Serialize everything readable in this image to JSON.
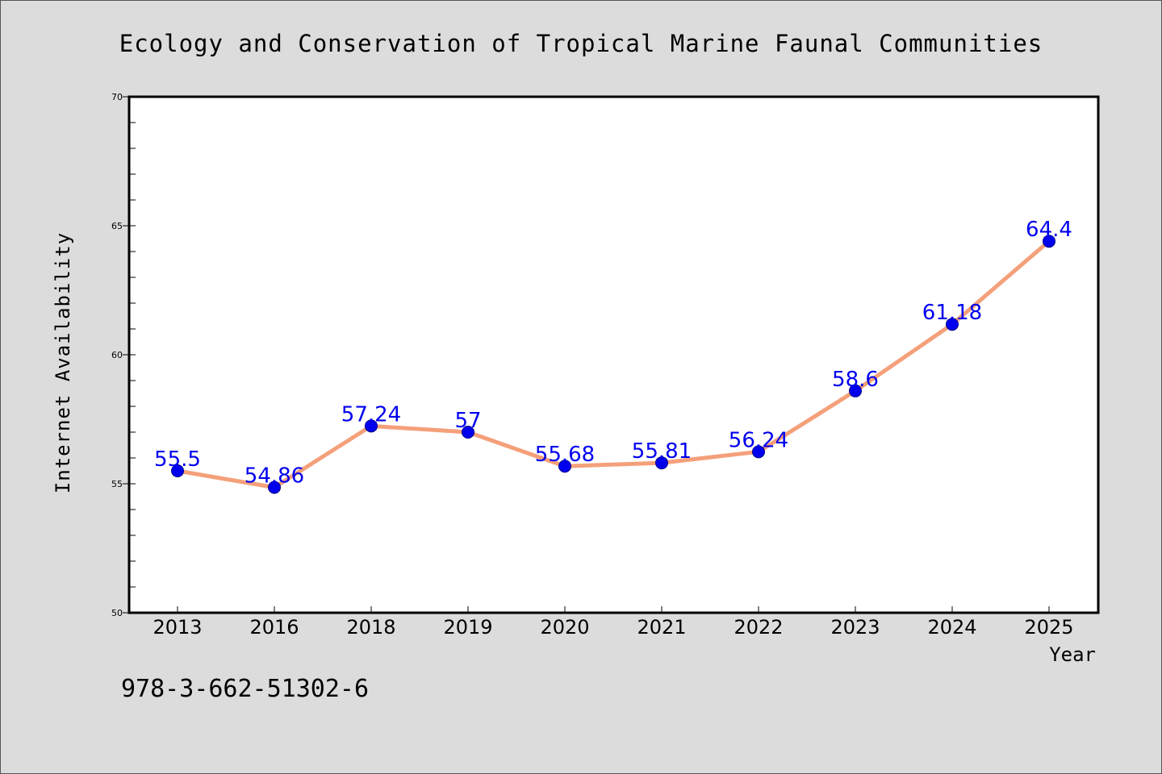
{
  "caption": "978-3-662-51302-6",
  "chart_data": {
    "type": "line",
    "title": "Ecology and Conservation of Tropical Marine Faunal Communities",
    "xlabel": "Year",
    "ylabel": "Internet Availability",
    "categories": [
      "2013",
      "2016",
      "2018",
      "2019",
      "2020",
      "2021",
      "2022",
      "2023",
      "2024",
      "2025"
    ],
    "series": [
      {
        "values": [
          55.5,
          54.86,
          57.24,
          57,
          55.68,
          55.81,
          56.24,
          58.6,
          61.18,
          64.4
        ],
        "labels": [
          "55.5",
          "54.86",
          "57.24",
          "57",
          "55.68",
          "55.81",
          "56.24",
          "58.6",
          "61.18",
          "64.4"
        ]
      }
    ],
    "ylim": [
      50,
      70
    ],
    "yticks": [
      50,
      55,
      60,
      65,
      70
    ],
    "ytick_labels": [
      "50",
      "55",
      "60",
      "65",
      "70"
    ],
    "grid": false,
    "legend": "none",
    "colors": {
      "line": "#f4a07a",
      "marker": "#0000ee",
      "marker_edge": "#00008b",
      "data_label": "#0000ee",
      "plot_bg": "#ffffff",
      "page_bg": "#dcdcdc"
    }
  }
}
